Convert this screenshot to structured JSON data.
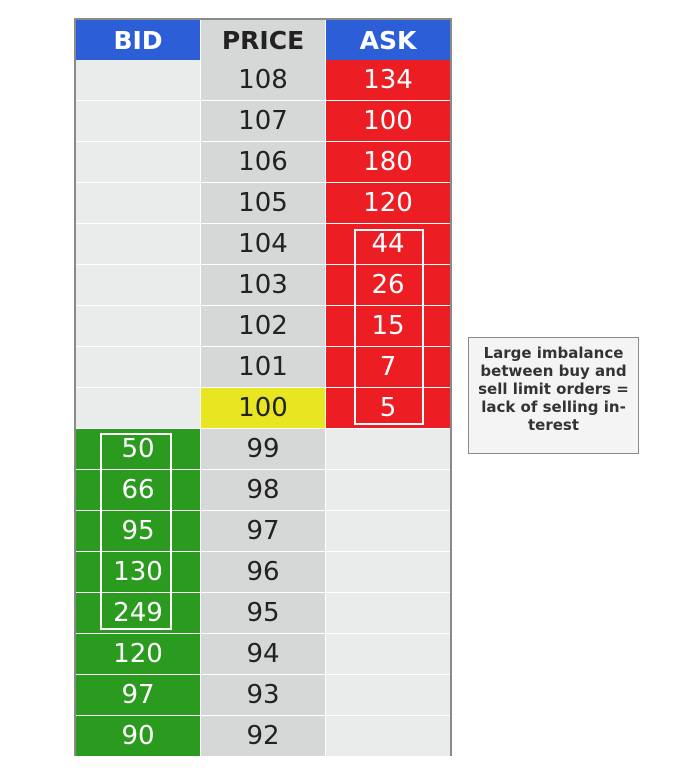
{
  "headers": {
    "bid": "BID",
    "price": "PRICE",
    "ask": "ASK"
  },
  "rows": [
    {
      "bid": "",
      "price": "108",
      "ask": "134"
    },
    {
      "bid": "",
      "price": "107",
      "ask": "100"
    },
    {
      "bid": "",
      "price": "106",
      "ask": "180"
    },
    {
      "bid": "",
      "price": "105",
      "ask": "120"
    },
    {
      "bid": "",
      "price": "104",
      "ask": "44"
    },
    {
      "bid": "",
      "price": "103",
      "ask": "26"
    },
    {
      "bid": "",
      "price": "102",
      "ask": "15"
    },
    {
      "bid": "",
      "price": "101",
      "ask": "7"
    },
    {
      "bid": "",
      "price": "100",
      "ask": "5"
    },
    {
      "bid": "50",
      "price": "99",
      "ask": ""
    },
    {
      "bid": "66",
      "price": "98",
      "ask": ""
    },
    {
      "bid": "95",
      "price": "97",
      "ask": ""
    },
    {
      "bid": "130",
      "price": "96",
      "ask": ""
    },
    {
      "bid": "249",
      "price": "95",
      "ask": ""
    },
    {
      "bid": "120",
      "price": "94",
      "ask": ""
    },
    {
      "bid": "97",
      "price": "93",
      "ask": ""
    },
    {
      "bid": "90",
      "price": "92",
      "ask": ""
    }
  ],
  "annotation": {
    "text": "Large imbalance between buy and sell limit orders = lack of selling in-terest"
  },
  "colors": {
    "header": "#2c5fd7",
    "bid_fill": "#2a9b1f",
    "ask_fill": "#ec1d23",
    "price_bg": "#d5d8d6",
    "current_price": "#e8e620",
    "empty_bg": "#e9ecea"
  }
}
